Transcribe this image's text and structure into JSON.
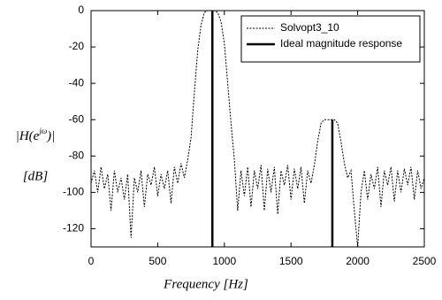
{
  "chart_data": {
    "type": "line",
    "xlabel": "Frequency [Hz]",
    "ylabel": [
      "|H(e",
      "jω",
      ")|"
    ],
    "ylabel_unit": "[dB]",
    "xlim": [
      0,
      2500
    ],
    "xticks": [
      0,
      500,
      1000,
      1500,
      2000,
      2500
    ],
    "ylim": [
      -130,
      0
    ],
    "yticks": [
      -120,
      -100,
      -80,
      -60,
      -40,
      -20,
      0
    ],
    "grid": false,
    "legend_position": "upper right",
    "series": [
      {
        "name": "Solvopt3_10",
        "color": "#000000",
        "style": "dotted",
        "x": [
          0,
          25,
          50,
          75,
          100,
          125,
          150,
          175,
          200,
          225,
          250,
          275,
          300,
          325,
          350,
          375,
          400,
          425,
          450,
          475,
          500,
          525,
          550,
          575,
          600,
          625,
          650,
          675,
          700,
          725,
          750,
          775,
          800,
          825,
          850,
          875,
          900,
          925,
          950,
          975,
          1000,
          1025,
          1050,
          1075,
          1100,
          1125,
          1150,
          1175,
          1200,
          1225,
          1250,
          1275,
          1300,
          1325,
          1350,
          1375,
          1400,
          1425,
          1450,
          1475,
          1500,
          1525,
          1550,
          1575,
          1600,
          1625,
          1650,
          1675,
          1700,
          1725,
          1750,
          1775,
          1800,
          1825,
          1850,
          1875,
          1900,
          1925,
          1950,
          1975,
          2000,
          2025,
          2050,
          2075,
          2100,
          2125,
          2150,
          2175,
          2200,
          2225,
          2250,
          2275,
          2300,
          2325,
          2350,
          2375,
          2400,
          2425,
          2450,
          2475,
          2500
        ],
        "values": [
          -95,
          -88,
          -100,
          -86,
          -98,
          -90,
          -110,
          -88,
          -100,
          -92,
          -104,
          -90,
          -125,
          -92,
          -100,
          -88,
          -108,
          -90,
          -96,
          -86,
          -102,
          -90,
          -98,
          -88,
          -106,
          -86,
          -95,
          -84,
          -92,
          -82,
          -70,
          -45,
          -22,
          -8,
          -1,
          0,
          0,
          0,
          -1,
          -6,
          -18,
          -40,
          -62,
          -82,
          -110,
          -88,
          -102,
          -86,
          -108,
          -88,
          -98,
          -85,
          -110,
          -87,
          -100,
          -86,
          -112,
          -88,
          -96,
          -85,
          -104,
          -87,
          -98,
          -86,
          -106,
          -88,
          -95,
          -85,
          -72,
          -62,
          -60,
          -60,
          -60,
          -60,
          -62,
          -72,
          -84,
          -92,
          -88,
          -110,
          -130,
          -100,
          -88,
          -104,
          -90,
          -98,
          -86,
          -108,
          -88,
          -96,
          -86,
          -105,
          -88,
          -100,
          -87,
          -96,
          -86,
          -104,
          -88,
          -98,
          -92
        ]
      },
      {
        "name": "Ideal magnitude response",
        "color": "#000000",
        "style": "solid",
        "x": [
          910,
          910,
          1810,
          1810,
          1810
        ],
        "values": [
          -130,
          0,
          null,
          -60,
          -130
        ]
      }
    ]
  }
}
